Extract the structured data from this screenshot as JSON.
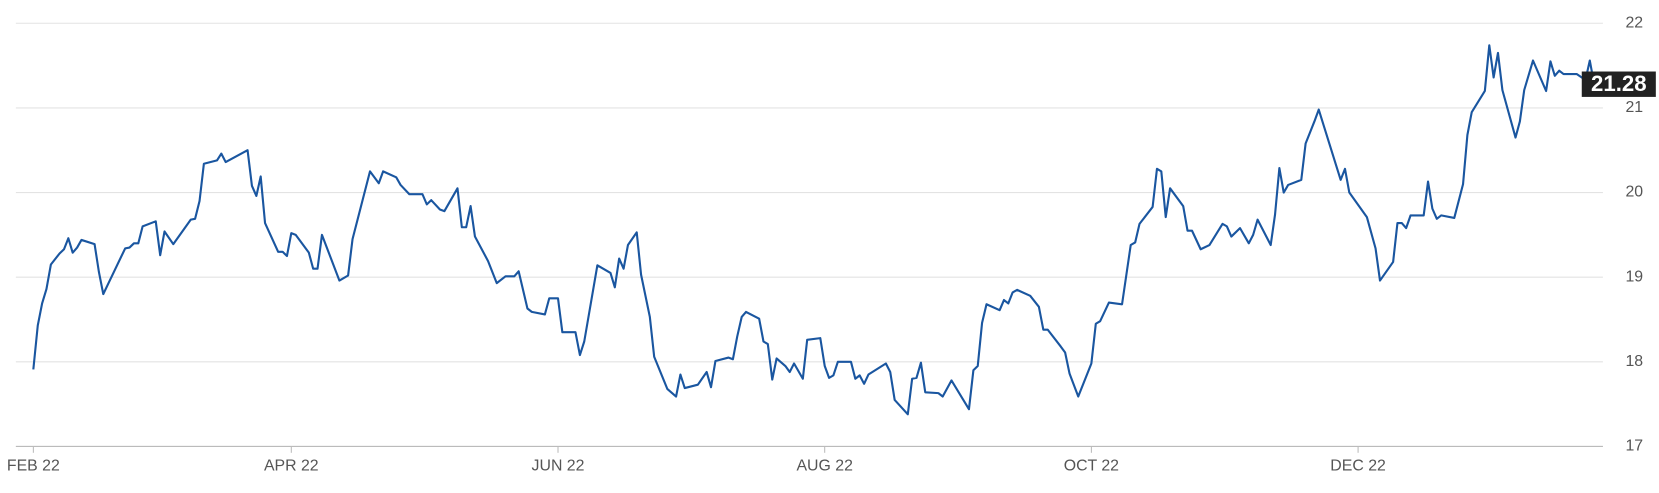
{
  "chart_data": {
    "type": "line",
    "x": [
      0,
      1,
      2,
      3,
      4,
      6,
      7,
      8,
      9,
      10,
      11,
      14,
      15,
      16,
      17,
      21,
      22,
      23,
      24,
      25,
      28,
      29,
      30,
      32,
      36,
      37,
      38,
      39,
      42,
      43,
      44,
      49,
      50,
      51,
      52,
      53,
      56,
      57,
      58,
      59,
      60,
      63,
      64,
      65,
      66,
      70,
      72,
      73,
      77,
      79,
      80,
      83,
      84,
      86,
      89,
      90,
      91,
      93,
      94,
      97,
      98,
      99,
      100,
      101,
      104,
      106,
      108,
      110,
      111,
      113,
      114,
      117,
      118,
      120,
      121,
      124,
      125,
      126,
      129,
      132,
      133,
      134,
      135,
      136,
      138,
      139,
      141,
      142,
      145,
      147,
      148,
      149,
      152,
      154,
      155,
      156,
      159,
      160,
      161,
      162,
      163,
      166,
      167,
      168,
      169,
      170,
      172,
      173,
      174,
      176,
      177,
      180,
      181,
      182,
      183,
      184,
      187,
      188,
      189,
      190,
      191,
      195,
      196,
      197,
      200,
      201,
      202,
      203,
      204,
      207,
      208,
      210,
      214,
      215,
      216,
      217,
      218,
      221,
      222,
      223,
      224,
      225,
      228,
      230,
      231,
      232,
      235,
      236,
      237,
      239,
      242,
      243,
      244,
      246,
      249,
      250,
      251,
      252,
      253,
      256,
      257,
      258,
      259,
      260,
      263,
      264,
      265,
      267,
      269,
      272,
      273,
      274,
      276,
      278,
      279,
      280,
      283,
      284,
      285,
      286,
      287,
      290,
      291,
      293,
      294,
      299,
      300,
      301,
      305,
      307,
      308,
      311,
      312,
      313,
      314,
      315,
      318,
      319,
      320,
      321,
      322,
      325,
      327,
      328,
      329,
      332,
      333,
      334,
      335,
      336,
      339,
      340,
      341,
      343,
      346,
      347,
      348,
      349,
      350,
      353,
      355,
      356,
      357
    ],
    "values": [
      17.91,
      18.43,
      18.69,
      18.86,
      19.15,
      19.28,
      19.33,
      19.46,
      19.29,
      19.35,
      19.44,
      19.39,
      19.06,
      18.8,
      18.91,
      19.34,
      19.35,
      19.4,
      19.4,
      19.6,
      19.66,
      19.26,
      19.54,
      19.39,
      19.68,
      19.69,
      19.9,
      20.34,
      20.38,
      20.46,
      20.36,
      20.5,
      20.08,
      19.96,
      20.19,
      19.64,
      19.3,
      19.3,
      19.25,
      19.52,
      19.5,
      19.29,
      19.1,
      19.1,
      19.5,
      18.96,
      19.02,
      19.45,
      20.25,
      20.11,
      20.25,
      20.18,
      20.09,
      19.98,
      19.98,
      19.86,
      19.91,
      19.8,
      19.78,
      20.05,
      19.59,
      19.59,
      19.84,
      19.48,
      19.19,
      18.93,
      19.01,
      19.01,
      19.07,
      18.63,
      18.59,
      18.56,
      18.75,
      18.75,
      18.35,
      18.35,
      18.08,
      18.24,
      19.14,
      19.05,
      18.88,
      19.22,
      19.1,
      19.38,
      19.53,
      19.03,
      18.53,
      18.06,
      17.68,
      17.59,
      17.85,
      17.69,
      17.73,
      17.88,
      17.7,
      18.01,
      18.05,
      18.03,
      18.3,
      18.53,
      18.59,
      18.51,
      18.24,
      18.21,
      17.79,
      18.04,
      17.95,
      17.88,
      17.98,
      17.8,
      18.26,
      18.28,
      17.95,
      17.81,
      17.84,
      18.0,
      18.0,
      17.8,
      17.84,
      17.74,
      17.85,
      17.98,
      17.88,
      17.55,
      17.38,
      17.8,
      17.81,
      17.99,
      17.64,
      17.63,
      17.59,
      17.78,
      17.44,
      17.9,
      17.95,
      18.46,
      18.68,
      18.61,
      18.73,
      18.69,
      18.82,
      18.85,
      18.78,
      18.65,
      18.38,
      18.38,
      18.18,
      18.11,
      17.86,
      17.59,
      17.98,
      18.45,
      18.48,
      18.7,
      18.68,
      19.03,
      19.38,
      19.41,
      19.63,
      19.83,
      20.28,
      20.25,
      19.71,
      20.05,
      19.84,
      19.55,
      19.55,
      19.33,
      19.38,
      19.63,
      19.6,
      19.48,
      19.58,
      19.4,
      19.5,
      19.68,
      19.38,
      19.74,
      20.29,
      20.0,
      20.09,
      20.15,
      20.58,
      20.84,
      20.98,
      20.15,
      20.28,
      20.0,
      19.71,
      19.34,
      18.96,
      19.18,
      19.64,
      19.64,
      19.58,
      19.73,
      19.73,
      20.13,
      19.81,
      19.69,
      19.73,
      19.7,
      20.1,
      20.68,
      20.95,
      21.2,
      21.74,
      21.36,
      21.65,
      21.21,
      20.65,
      20.84,
      21.21,
      21.56,
      21.2,
      21.55,
      21.38,
      21.44,
      21.4,
      21.4,
      21.33,
      21.56,
      21.28
    ],
    "color": "#1a56a0",
    "xlim": [
      -4,
      359
    ],
    "xticks": [
      {
        "value": 0,
        "label": "FEB 22"
      },
      {
        "value": 59,
        "label": "APR 22"
      },
      {
        "value": 120,
        "label": "JUN 22"
      },
      {
        "value": 181,
        "label": "AUG 22"
      },
      {
        "value": 242,
        "label": "OCT 22"
      },
      {
        "value": 303,
        "label": "DEC 22"
      }
    ],
    "ylim": [
      17,
      22
    ],
    "yticks": [
      17,
      18,
      19,
      20,
      21,
      22
    ],
    "grid": true
  }
}
